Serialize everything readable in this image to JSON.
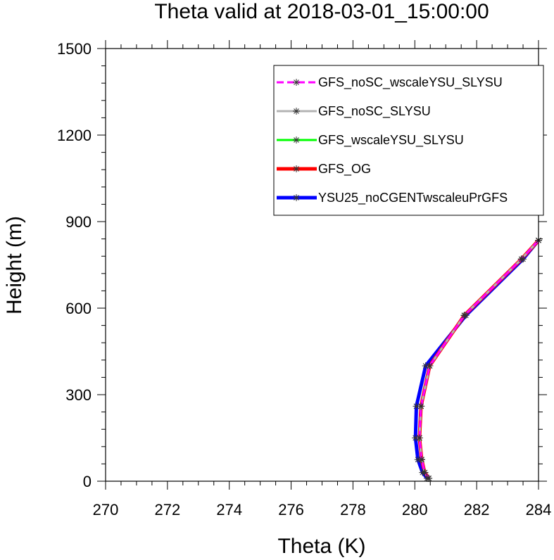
{
  "chart_data": {
    "type": "line",
    "title": "Theta valid at 2018-03-01_15:00:00",
    "xlabel": "Theta (K)",
    "ylabel": "Height (m)",
    "xlim": [
      270,
      284
    ],
    "ylim": [
      0,
      1500
    ],
    "xticks": [
      270,
      272,
      274,
      276,
      278,
      280,
      282,
      284
    ],
    "yticks": [
      0,
      300,
      600,
      900,
      1200,
      1500
    ],
    "legend_position": "top-right",
    "grid": false,
    "series": [
      {
        "name": "GFS_noSC_wscaleYSU_SLYSU",
        "color": "#ff00ff",
        "dash": "dashed",
        "x": [
          280.45,
          280.32,
          280.22,
          280.15,
          280.2,
          280.48,
          281.6,
          283.45,
          284.0
        ],
        "y": [
          10,
          30,
          75,
          150,
          260,
          400,
          575,
          770,
          835
        ]
      },
      {
        "name": "GFS_noSC_SLYSU",
        "color": "#b3b3b3",
        "dash": "solid",
        "x": [
          280.45,
          280.32,
          280.22,
          280.15,
          280.2,
          280.48,
          281.6,
          283.45,
          284.0
        ],
        "y": [
          10,
          30,
          75,
          150,
          260,
          400,
          575,
          770,
          835
        ]
      },
      {
        "name": "GFS_wscaleYSU_SLYSU",
        "color": "#00ff00",
        "dash": "solid",
        "x": [
          280.45,
          280.32,
          280.22,
          280.15,
          280.2,
          280.48,
          281.6,
          283.45,
          284.0
        ],
        "y": [
          10,
          30,
          75,
          150,
          260,
          400,
          575,
          770,
          835
        ]
      },
      {
        "name": "GFS_OG",
        "color": "#ff0000",
        "dash": "solid",
        "x": [
          280.45,
          280.32,
          280.22,
          280.15,
          280.2,
          280.48,
          281.6,
          283.45,
          284.0
        ],
        "y": [
          10,
          30,
          75,
          150,
          260,
          400,
          575,
          770,
          835
        ]
      },
      {
        "name": "YSU25_noCGENTwscaleuPrGFS",
        "color": "#0000ff",
        "dash": "solid",
        "x": [
          280.4,
          280.25,
          280.1,
          280.02,
          280.05,
          280.35,
          281.65,
          283.5,
          284.0
        ],
        "y": [
          10,
          30,
          75,
          150,
          260,
          400,
          575,
          770,
          835
        ]
      }
    ]
  }
}
